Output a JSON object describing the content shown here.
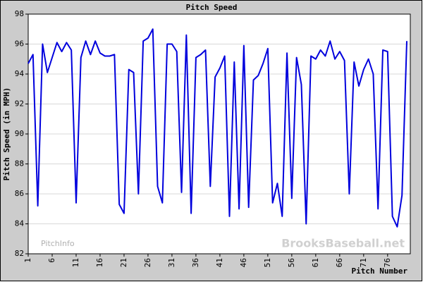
{
  "chart_data": {
    "type": "line",
    "title": "Pitch Speed",
    "xlabel": "Pitch Number",
    "ylabel": "Pitch Speed (in MPH)",
    "watermarks": [
      "PitchInfo",
      "BrooksBaseball.net"
    ],
    "x": [
      1,
      2,
      3,
      4,
      5,
      6,
      7,
      8,
      9,
      10,
      11,
      12,
      13,
      14,
      15,
      16,
      17,
      18,
      19,
      20,
      21,
      22,
      23,
      24,
      25,
      26,
      27,
      28,
      29,
      30,
      31,
      32,
      33,
      34,
      35,
      36,
      37,
      38,
      39,
      40,
      41,
      42,
      43,
      44,
      45,
      46,
      47,
      48,
      49,
      50,
      51,
      52,
      53,
      54,
      55,
      56,
      57,
      58,
      59,
      60,
      61,
      62,
      63,
      64,
      65,
      66,
      67,
      68,
      69,
      70,
      71,
      72,
      73,
      74,
      75,
      76,
      77,
      78,
      79,
      80
    ],
    "series": [
      {
        "name": "Pitch Speed",
        "color": "#0000dd",
        "values": [
          94.7,
          95.3,
          85.2,
          96.0,
          94.1,
          95.1,
          96.1,
          95.5,
          96.1,
          95.6,
          85.4,
          95.1,
          96.2,
          95.3,
          96.2,
          95.4,
          95.2,
          95.2,
          95.3,
          85.3,
          84.7,
          94.3,
          94.1,
          86.0,
          96.2,
          96.4,
          97.0,
          86.5,
          85.4,
          96.0,
          96.0,
          95.5,
          86.1,
          96.6,
          84.7,
          95.1,
          95.3,
          95.6,
          86.5,
          93.8,
          94.4,
          95.2,
          84.5,
          94.8,
          85.0,
          95.9,
          85.1,
          93.6,
          93.9,
          94.7,
          95.7,
          85.4,
          86.7,
          84.5,
          95.4,
          85.7,
          95.1,
          93.3,
          84.0,
          95.2,
          95.0,
          95.6,
          95.2,
          96.2,
          95.0,
          95.5,
          94.9,
          86.0,
          94.8,
          93.2,
          94.3,
          95.0,
          94.0,
          85.0,
          95.6,
          95.5,
          84.5,
          83.8,
          85.9,
          96.2
        ]
      }
    ],
    "xlim": [
      1,
      80
    ],
    "xticks": [
      1,
      6,
      11,
      16,
      21,
      26,
      31,
      36,
      41,
      46,
      51,
      56,
      61,
      66,
      71,
      76
    ],
    "ylim": [
      82,
      98
    ],
    "yticks": [
      82,
      84,
      86,
      88,
      90,
      92,
      94,
      96,
      98
    ],
    "grid": true
  }
}
